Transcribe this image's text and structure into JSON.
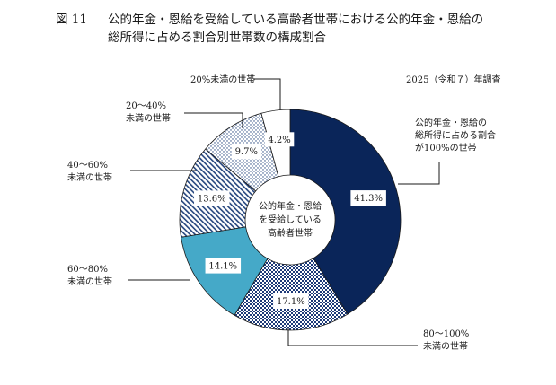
{
  "title": {
    "number": "図 11",
    "line1": "公的年金・恩給を受給している高齢者世帯における公的年金・恩給の",
    "line2": "総所得に占める割合別世帯数の構成割合"
  },
  "survey_note": "2025（令和７）年調査",
  "center_label": [
    "公的年金・恩給",
    "を受給している",
    "高齢者世帯"
  ],
  "chart_data": {
    "type": "pie",
    "donut": true,
    "start": "12 o'clock",
    "direction": "clockwise",
    "title": "公的年金・恩給を受給している高齢者世帯における公的年金・恩給の総所得に占める割合別世帯数の構成割合",
    "slices": [
      {
        "category": [
          "公的年金・恩給の",
          "総所得に占める割合",
          "が100%の世帯"
        ],
        "value": 41.3,
        "label": "41.3%",
        "color": "#0a2559",
        "pattern": "solid"
      },
      {
        "category": [
          "80～100%",
          "未満の世帯"
        ],
        "value": 17.1,
        "label": "17.1%",
        "color": "#1d3a78",
        "pattern": "check"
      },
      {
        "category": [
          "60～80%",
          "未満の世帯"
        ],
        "value": 14.1,
        "label": "14.1%",
        "color": "#45a9c8",
        "pattern": "solid"
      },
      {
        "category": [
          "40～60%",
          "未満の世帯"
        ],
        "value": 13.6,
        "label": "13.6%",
        "color": "#26467e",
        "pattern": "diagonal"
      },
      {
        "category": [
          "20～40%",
          "未満の世帯"
        ],
        "value": 9.7,
        "label": "9.7%",
        "color": "#26467e",
        "pattern": "dots"
      },
      {
        "category": [
          "20%未満の世帯"
        ],
        "value": 4.2,
        "label": "4.2%",
        "color": "#ffffff",
        "pattern": "solid"
      }
    ]
  }
}
